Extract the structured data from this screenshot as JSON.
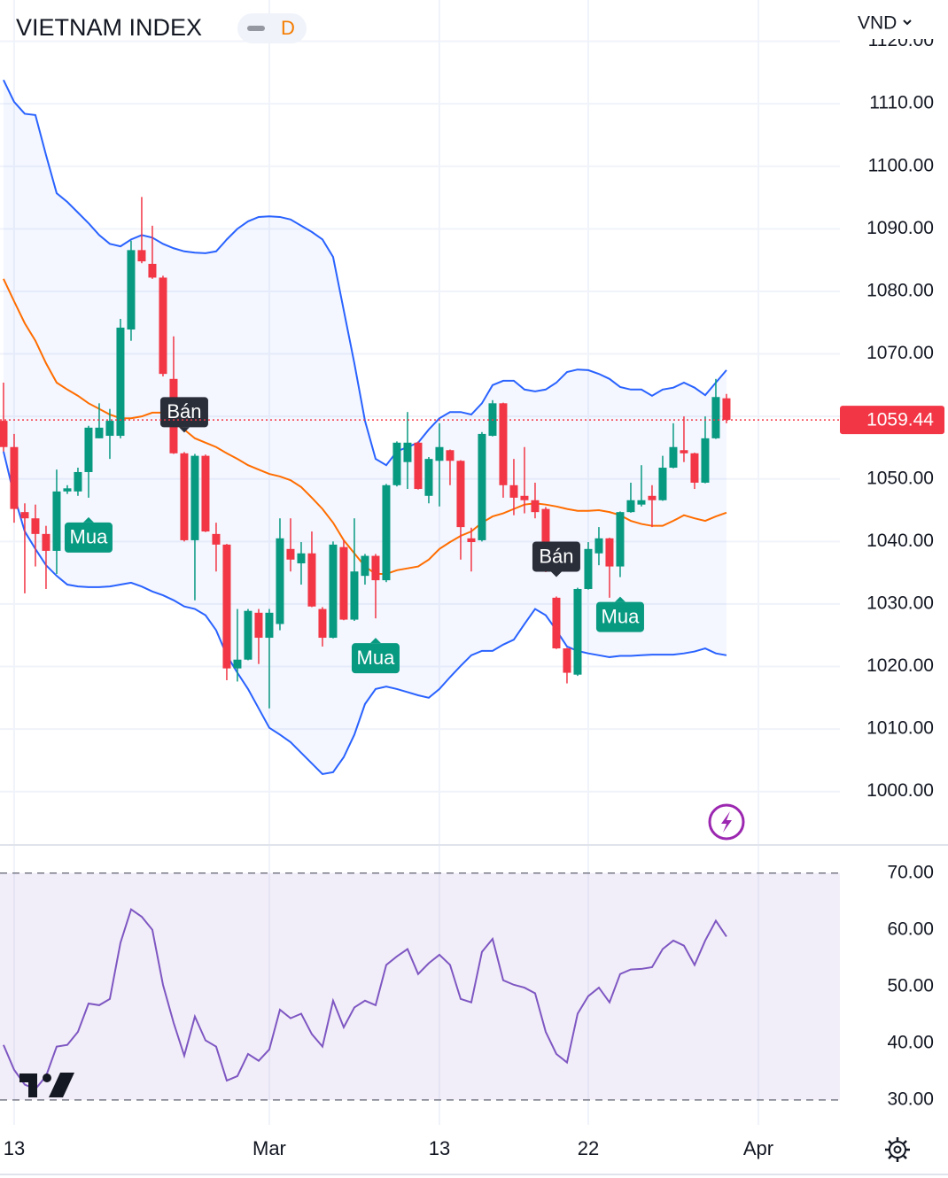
{
  "chart_data": [
    {
      "type": "candlestick",
      "title": "VIETNAM INDEX",
      "interval": "D",
      "currency": "VND",
      "open": [
        1059.3,
        1055.1,
        1044.7,
        1043.7,
        1041.2,
        1038.5,
        1048.0,
        1048.0,
        1051.1,
        1056.5,
        1056.9,
        1056.9,
        1073.9,
        1086.6,
        1084.4,
        1082.2,
        1066.0,
        1054.1,
        1040.2,
        1053.7,
        1041.2,
        1039.5,
        1019.7,
        1021.1,
        1028.6,
        1024.6,
        1026.8,
        1038.8,
        1036.5,
        1038.1,
        1029.2,
        1024.6,
        1039.1,
        1027.5,
        1034.5,
        1037.7,
        1033.8,
        1049.0,
        1052.7,
        1055.8,
        1047.3,
        1052.9,
        1054.6,
        1052.9,
        1040.5,
        1040.2,
        1056.9,
        1062.1,
        1049.0,
        1047.3,
        1046.6,
        1045.2,
        1031.0,
        1022.9,
        1018.7,
        1032.4,
        1038.1,
        1040.5,
        1036.0,
        1044.7,
        1045.9,
        1047.3,
        1046.6,
        1051.8,
        1054.6,
        1054.1,
        1049.4,
        1056.5,
        1062.9
      ],
      "high": [
        1065.4,
        1057.2,
        1046.1,
        1045.9,
        1042.5,
        1051.5,
        1049.0,
        1051.8,
        1058.5,
        1062.1,
        1061.2,
        1075.6,
        1088.1,
        1095.1,
        1090.5,
        1082.5,
        1072.8,
        1054.3,
        1054.0,
        1053.9,
        1043.0,
        1039.6,
        1029.2,
        1029.2,
        1029.2,
        1029.2,
        1043.7,
        1043.7,
        1039.9,
        1041.6,
        1029.5,
        1040.0,
        1040.2,
        1043.7,
        1038.0,
        1038.0,
        1049.2,
        1056.0,
        1060.7,
        1056.0,
        1053.5,
        1058.9,
        1054.7,
        1053.0,
        1042.2,
        1057.5,
        1062.6,
        1062.2,
        1053.2,
        1055.1,
        1049.4,
        1045.5,
        1031.2,
        1023.0,
        1032.6,
        1039.9,
        1042.3,
        1040.6,
        1044.8,
        1049.4,
        1052.2,
        1049.0,
        1053.7,
        1058.9,
        1060.0,
        1054.2,
        1060.0,
        1066.0,
        1063.6
      ],
      "low": [
        1054.4,
        1043.0,
        1031.7,
        1036.0,
        1032.4,
        1034.8,
        1047.6,
        1047.3,
        1047.0,
        1056.5,
        1053.2,
        1056.5,
        1072.1,
        1084.5,
        1082.0,
        1066.4,
        1054.0,
        1040.0,
        1030.6,
        1041.5,
        1035.2,
        1017.8,
        1017.6,
        1021.0,
        1020.4,
        1013.3,
        1025.8,
        1035.2,
        1033.1,
        1029.5,
        1023.2,
        1024.5,
        1027.4,
        1027.3,
        1033.1,
        1027.7,
        1033.5,
        1048.8,
        1048.4,
        1048.3,
        1046.1,
        1045.6,
        1049.0,
        1037.1,
        1035.2,
        1040.0,
        1056.8,
        1047.0,
        1044.2,
        1044.5,
        1043.7,
        1035.1,
        1022.8,
        1017.3,
        1018.5,
        1032.3,
        1036.2,
        1031.0,
        1034.3,
        1044.6,
        1045.6,
        1042.3,
        1046.5,
        1051.7,
        1052.7,
        1048.4,
        1049.3,
        1056.4,
        1058.9
      ],
      "close": [
        1055.1,
        1045.2,
        1043.7,
        1041.2,
        1038.5,
        1048.0,
        1048.5,
        1051.1,
        1058.2,
        1058.2,
        1059.3,
        1074.2,
        1086.6,
        1084.8,
        1082.2,
        1066.8,
        1054.1,
        1040.2,
        1053.7,
        1041.6,
        1039.5,
        1019.7,
        1021.1,
        1028.9,
        1024.6,
        1028.6,
        1040.5,
        1037.1,
        1038.1,
        1029.6,
        1024.6,
        1039.5,
        1027.5,
        1035.2,
        1037.7,
        1033.8,
        1049.0,
        1055.8,
        1055.8,
        1048.4,
        1053.2,
        1055.1,
        1052.9,
        1042.3,
        1039.9,
        1057.2,
        1062.1,
        1049.0,
        1047.0,
        1046.6,
        1044.7,
        1035.2,
        1022.9,
        1019.0,
        1032.4,
        1038.8,
        1040.5,
        1036.0,
        1044.7,
        1046.6,
        1046.6,
        1046.6,
        1051.8,
        1055.1,
        1054.1,
        1049.4,
        1056.5,
        1063.1,
        1059.44
      ],
      "up_color": "#089981",
      "down_color": "#f23645",
      "bands": {
        "upper": [
          1113.8,
          1110.3,
          1108.4,
          1108.2,
          1101.8,
          1095.7,
          1094.3,
          1092.6,
          1090.9,
          1089.0,
          1087.6,
          1087.2,
          1088.3,
          1089.0,
          1088.6,
          1087.6,
          1086.9,
          1086.4,
          1086.2,
          1086.1,
          1086.4,
          1088.3,
          1090.0,
          1091.2,
          1091.9,
          1092.0,
          1091.9,
          1091.5,
          1090.5,
          1089.5,
          1088.3,
          1085.5,
          1077.0,
          1068.5,
          1059.3,
          1053.2,
          1052.2,
          1054.4,
          1055.1,
          1055.8,
          1057.9,
          1059.7,
          1060.7,
          1060.7,
          1060.3,
          1062.1,
          1065.0,
          1065.7,
          1065.7,
          1064.3,
          1064.0,
          1064.3,
          1065.4,
          1067.1,
          1067.5,
          1067.4,
          1066.8,
          1066.0,
          1064.7,
          1064.3,
          1064.3,
          1063.3,
          1064.3,
          1064.6,
          1065.4,
          1064.6,
          1063.4,
          1065.4,
          1067.4
        ],
        "middle": [
          1082.0,
          1078.4,
          1074.9,
          1072.1,
          1068.5,
          1065.4,
          1064.3,
          1063.3,
          1062.1,
          1061.2,
          1060.3,
          1059.7,
          1059.7,
          1060.0,
          1060.6,
          1060.6,
          1059.3,
          1057.9,
          1056.5,
          1055.8,
          1055.1,
          1054.1,
          1053.2,
          1052.2,
          1051.5,
          1050.8,
          1050.4,
          1049.8,
          1048.7,
          1047.0,
          1045.2,
          1043.0,
          1040.2,
          1038.1,
          1036.0,
          1034.8,
          1034.8,
          1035.4,
          1035.7,
          1036.0,
          1037.1,
          1038.8,
          1039.9,
          1040.9,
          1041.6,
          1043.0,
          1044.0,
          1044.5,
          1045.2,
          1045.9,
          1046.1,
          1045.9,
          1045.6,
          1045.2,
          1044.9,
          1044.9,
          1045.0,
          1044.7,
          1044.2,
          1043.3,
          1042.8,
          1042.5,
          1042.5,
          1043.3,
          1044.2,
          1043.7,
          1043.3,
          1044.0,
          1044.6
        ],
        "lower": [
          1054.4,
          1047.3,
          1041.6,
          1038.8,
          1036.2,
          1034.5,
          1033.1,
          1032.8,
          1032.7,
          1032.7,
          1032.8,
          1033.1,
          1033.4,
          1032.8,
          1032.0,
          1031.4,
          1030.6,
          1029.6,
          1029.2,
          1028.2,
          1025.8,
          1021.8,
          1019.0,
          1016.4,
          1013.3,
          1010.2,
          1009.1,
          1007.9,
          1006.2,
          1004.5,
          1002.8,
          1003.1,
          1005.5,
          1009.1,
          1014.0,
          1016.4,
          1016.8,
          1016.4,
          1015.9,
          1015.4,
          1015.0,
          1016.4,
          1018.3,
          1020.1,
          1021.8,
          1022.5,
          1022.5,
          1023.5,
          1024.3,
          1026.8,
          1029.2,
          1028.2,
          1025.8,
          1023.2,
          1022.5,
          1022.1,
          1021.8,
          1021.5,
          1021.7,
          1021.7,
          1021.8,
          1021.9,
          1021.9,
          1021.9,
          1022.1,
          1022.4,
          1022.9,
          1022.1,
          1021.8
        ]
      },
      "band_color": "#2962ff",
      "middle_color": "#ff6d00",
      "signals": [
        {
          "index": 8,
          "label": "Mua",
          "color": "#089981",
          "position": "below"
        },
        {
          "index": 17,
          "label": "Bán",
          "color": "#2a2e39",
          "position": "above"
        },
        {
          "index": 35,
          "label": "Mua",
          "color": "#089981",
          "position": "below"
        },
        {
          "index": 52,
          "label": "Bán",
          "color": "#2a2e39",
          "position": "above"
        },
        {
          "index": 58,
          "label": "Mua",
          "color": "#089981",
          "position": "below"
        }
      ],
      "last_price": 1059.44,
      "xlim": [
        -0.33,
        78.67
      ],
      "xticks": [
        {
          "value": 1,
          "label": "13"
        },
        {
          "value": 25,
          "label": "Mar"
        },
        {
          "value": 41,
          "label": "13"
        },
        {
          "value": 55,
          "label": "22"
        },
        {
          "value": 71,
          "label": "Apr"
        }
      ],
      "ylim": [
        991.6,
        1126.6
      ],
      "yticks": [
        {
          "value": 1000,
          "label": "1000.00"
        },
        {
          "value": 1010,
          "label": "1010.00"
        },
        {
          "value": 1020,
          "label": "1020.00"
        },
        {
          "value": 1030,
          "label": "1030.00"
        },
        {
          "value": 1040,
          "label": "1040.00"
        },
        {
          "value": 1050,
          "label": "1050.00"
        },
        {
          "value": 1060,
          "label": "1060.00"
        },
        {
          "value": 1070,
          "label": "1070.00"
        },
        {
          "value": 1080,
          "label": "1080.00"
        },
        {
          "value": 1090,
          "label": "1090.00"
        },
        {
          "value": 1100,
          "label": "1100.00"
        },
        {
          "value": 1110,
          "label": "1110.00"
        },
        {
          "value": 1120,
          "label": "1120.00"
        }
      ],
      "grid": true
    },
    {
      "type": "line",
      "values": [
        39.7,
        35.3,
        32.7,
        31.9,
        34.2,
        39.4,
        39.7,
        42.0,
        47.0,
        46.7,
        47.8,
        57.7,
        63.6,
        62.3,
        60.0,
        50.3,
        43.6,
        37.8,
        44.7,
        40.5,
        39.4,
        33.4,
        34.2,
        38.1,
        36.9,
        38.9,
        45.9,
        44.4,
        45.2,
        41.6,
        39.4,
        47.5,
        42.8,
        46.3,
        47.5,
        46.7,
        53.8,
        55.3,
        56.6,
        52.2,
        54.1,
        55.6,
        53.8,
        47.8,
        47.2,
        56.1,
        58.4,
        51.1,
        50.3,
        49.8,
        48.8,
        42.0,
        38.1,
        36.6,
        45.2,
        48.3,
        49.8,
        47.2,
        52.2,
        53.0,
        53.1,
        53.4,
        56.6,
        58.1,
        57.2,
        53.8,
        58.1,
        61.6,
        58.8
      ],
      "color": "#7e57c2",
      "levels": [
        30,
        70
      ],
      "ylim": [
        25.6,
        74.8
      ],
      "yticks": [
        {
          "value": 30,
          "label": "30.00"
        },
        {
          "value": 40,
          "label": "40.00"
        },
        {
          "value": 50,
          "label": "50.00"
        },
        {
          "value": 60,
          "label": "60.00"
        },
        {
          "value": 70,
          "label": "70.00"
        }
      ]
    }
  ]
}
